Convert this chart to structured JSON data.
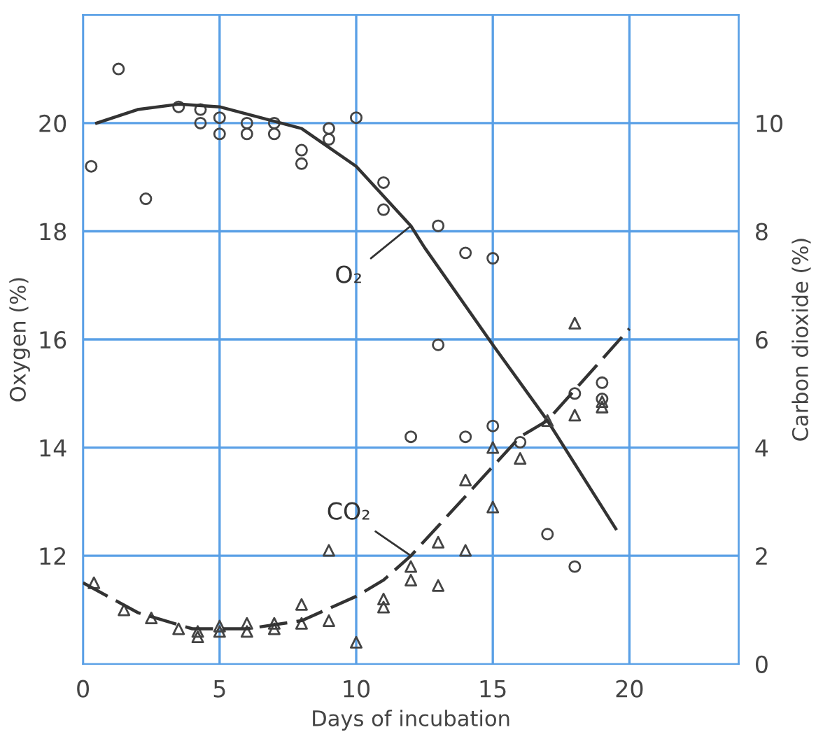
{
  "chart_data": {
    "type": "scatter",
    "xlabel": "Days of incubation",
    "ylabel": "Oxygen (%)",
    "y2label": "Carbon dioxide (%)",
    "xlim": [
      0,
      24
    ],
    "xticks": [
      0,
      5,
      10,
      15,
      20
    ],
    "ylim": [
      10,
      22
    ],
    "yticks": [
      12,
      14,
      16,
      18,
      20
    ],
    "y2lim": [
      0,
      12
    ],
    "y2ticks": [
      0,
      2,
      4,
      6,
      8,
      10
    ],
    "grid": true,
    "legend": false,
    "series": [
      {
        "marker": "circle",
        "color": "#444444",
        "x": [
          0.3,
          1.3,
          2.3,
          3.5,
          4.3,
          4.3,
          5,
          5,
          6,
          6,
          7,
          7,
          8,
          8,
          9,
          9,
          10,
          11,
          11,
          13,
          13,
          12,
          14,
          14,
          15,
          15,
          16,
          17,
          18,
          18,
          19,
          19
        ],
        "values": [
          19.2,
          21.0,
          18.6,
          20.3,
          20.25,
          20.0,
          20.1,
          19.8,
          20.0,
          19.8,
          20.0,
          19.8,
          19.5,
          19.25,
          19.9,
          19.7,
          20.1,
          18.9,
          18.4,
          18.1,
          15.9,
          14.2,
          17.6,
          14.2,
          17.5,
          14.4,
          14.1,
          12.4,
          11.8,
          15.0,
          15.2,
          14.9
        ]
      },
      {
        "type": "line",
        "name": "O₂",
        "color": "#333333",
        "line_style": "solid",
        "x": [
          0.5,
          2,
          3.5,
          5,
          8,
          10,
          12,
          12.5,
          15,
          17,
          19.5
        ],
        "values": [
          20.0,
          20.25,
          20.35,
          20.3,
          19.9,
          19.2,
          18.1,
          17.7,
          15.9,
          14.5,
          12.5
        ]
      },
      {
        "axis": "y2",
        "marker": "triangle",
        "color": "#444444",
        "x": [
          0.4,
          1.5,
          2.5,
          3.5,
          4.2,
          4.2,
          5,
          5,
          6,
          6,
          7,
          7,
          8,
          8,
          9,
          9,
          10,
          11,
          11,
          12,
          12,
          13,
          13,
          14,
          14,
          15,
          15,
          16,
          17,
          18,
          18,
          19,
          19
        ],
        "values": [
          1.5,
          1.0,
          0.85,
          0.65,
          0.6,
          0.5,
          0.7,
          0.6,
          0.75,
          0.6,
          0.75,
          0.65,
          1.1,
          0.75,
          2.1,
          0.8,
          0.4,
          1.2,
          1.05,
          1.8,
          1.55,
          2.25,
          1.45,
          3.4,
          2.1,
          4.0,
          2.9,
          3.8,
          4.5,
          6.3,
          4.6,
          4.85,
          4.75
        ]
      },
      {
        "type": "line",
        "axis": "y2",
        "name": "CO₂",
        "color": "#333333",
        "line_style": "dashed",
        "x": [
          0,
          2,
          4,
          6,
          8,
          10,
          11,
          12,
          14,
          16,
          17,
          20
        ],
        "values": [
          1.5,
          0.95,
          0.65,
          0.65,
          0.8,
          1.25,
          1.55,
          2.0,
          3.1,
          4.2,
          4.5,
          6.2
        ]
      }
    ]
  }
}
